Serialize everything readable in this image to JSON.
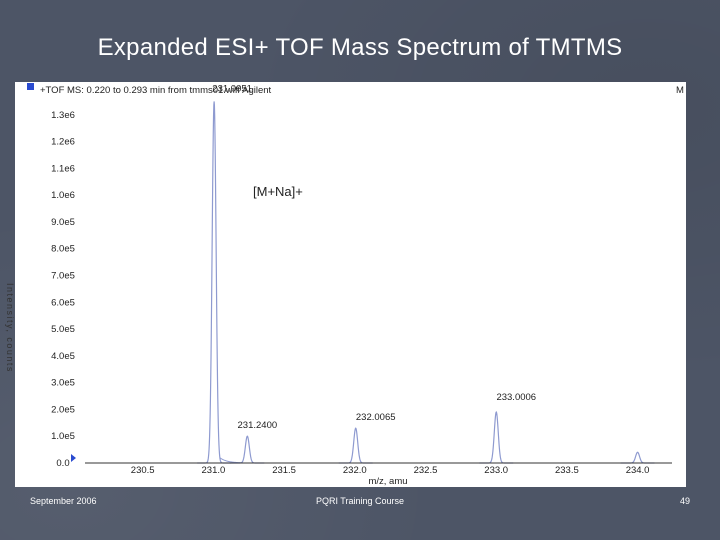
{
  "slide": {
    "title": "Expanded ESI+ TOF Mass Spectrum of TMTMS",
    "footer_left": "September 2006",
    "footer_center": "PQRI Training Course",
    "footer_right": "49"
  },
  "colors": {
    "background": "#4d5566",
    "trace": "#8e9ad0",
    "axis": "#333333"
  },
  "chart_data": {
    "type": "line",
    "header": "+TOF MS: 0.220 to 0.293 min from tmms01.wiff Agilent",
    "corner_label": "M",
    "xlabel": "m/z, amu",
    "ylabel": "Intensity, counts",
    "xlim": [
      230.0,
      234.3
    ],
    "ylim": [
      0,
      1400000
    ],
    "x_ticks": [
      "230.5",
      "231.0",
      "231.5",
      "232.0",
      "232.5",
      "233.0",
      "233.5",
      "234.0"
    ],
    "x_tick_values": [
      230.5,
      231.0,
      231.5,
      232.0,
      232.5,
      233.0,
      233.5,
      234.0
    ],
    "y_ticks": [
      "0.0",
      "1.0e5",
      "2.0e5",
      "3.0e5",
      "4.0e5",
      "5.0e5",
      "6.0e5",
      "7.0e5",
      "8.0e5",
      "9.0e5",
      "1.0e6",
      "1.1e6",
      "1.2e6",
      "1.3e6"
    ],
    "y_tick_values": [
      0,
      100000,
      200000,
      300000,
      400000,
      500000,
      600000,
      700000,
      800000,
      900000,
      1000000,
      1100000,
      1200000,
      1300000
    ],
    "annotation": "[M+Na]+",
    "peaks": [
      {
        "mz": 231.0051,
        "intensity": 1350000,
        "label": "231.0051"
      },
      {
        "mz": 231.24,
        "intensity": 100000,
        "label": "231.2400"
      },
      {
        "mz": 232.0065,
        "intensity": 130000,
        "label": "232.0065"
      },
      {
        "mz": 233.0006,
        "intensity": 190000,
        "label": "233.0006"
      },
      {
        "mz": 234.0,
        "intensity": 40000,
        "label": ""
      }
    ]
  }
}
